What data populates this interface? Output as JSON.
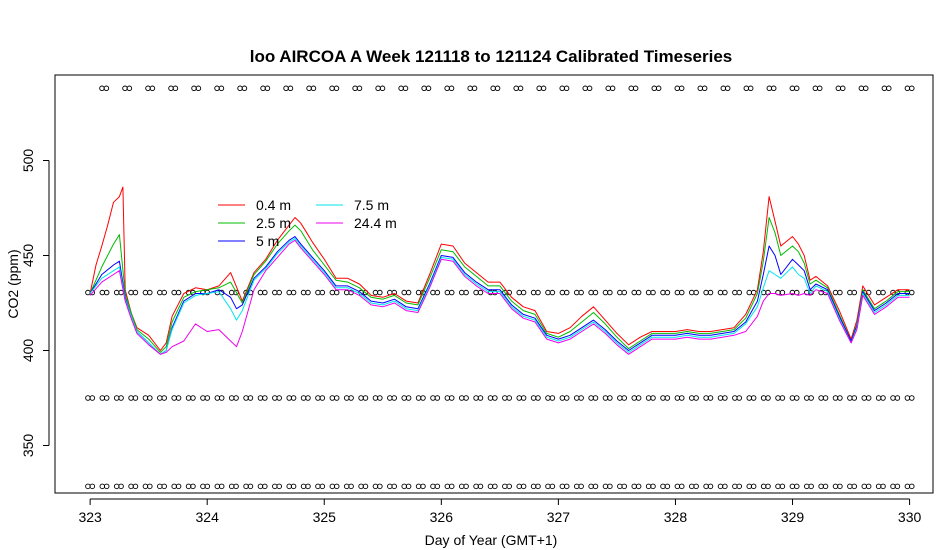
{
  "chart_data": {
    "type": "line",
    "title": "loo AIRCOA A  Week 121118 to 121124  Calibrated Timeseries",
    "xlabel": "Day of Year (GMT+1)",
    "ylabel": "CO2 (ppm)",
    "xlim": [
      322.7,
      330.2
    ],
    "ylim": [
      325,
      545
    ],
    "xticks": [
      323,
      324,
      325,
      326,
      327,
      328,
      329,
      330
    ],
    "yticks": [
      350,
      400,
      450,
      500
    ],
    "grid": false,
    "legend_position": "upper-left",
    "series": [
      {
        "name": "0.4 m",
        "color": "#ff0000",
        "x": [
          323.0,
          323.05,
          323.1,
          323.15,
          323.2,
          323.25,
          323.28,
          323.3,
          323.35,
          323.4,
          323.5,
          323.6,
          323.65,
          323.7,
          323.8,
          323.9,
          324.0,
          324.1,
          324.2,
          324.3,
          324.4,
          324.5,
          324.6,
          324.7,
          324.75,
          324.8,
          324.85,
          324.9,
          325.0,
          325.1,
          325.2,
          325.3,
          325.4,
          325.5,
          325.6,
          325.7,
          325.8,
          325.9,
          326.0,
          326.1,
          326.2,
          326.3,
          326.4,
          326.5,
          326.6,
          326.7,
          326.8,
          326.9,
          327.0,
          327.1,
          327.2,
          327.3,
          327.4,
          327.5,
          327.6,
          327.7,
          327.8,
          327.9,
          328.0,
          328.1,
          328.2,
          328.3,
          328.4,
          328.5,
          328.6,
          328.7,
          328.75,
          328.8,
          328.85,
          328.9,
          329.0,
          329.05,
          329.1,
          329.15,
          329.2,
          329.3,
          329.4,
          329.5,
          329.55,
          329.6,
          329.7,
          329.8,
          329.9,
          330.0
        ],
        "values": [
          430,
          445,
          455,
          466,
          478,
          481,
          486,
          432,
          420,
          412,
          408,
          400,
          404,
          418,
          430,
          433,
          432,
          434,
          441,
          426,
          441,
          448,
          458,
          466,
          470,
          467,
          462,
          457,
          448,
          438,
          438,
          435,
          429,
          428,
          430,
          426,
          425,
          440,
          456,
          455,
          446,
          441,
          436,
          436,
          428,
          423,
          421,
          410,
          409,
          412,
          418,
          423,
          416,
          409,
          403,
          407,
          410,
          410,
          410,
          411,
          410,
          410,
          411,
          412,
          419,
          432,
          452,
          481,
          468,
          455,
          460,
          456,
          450,
          437,
          439,
          434,
          421,
          406,
          416,
          434,
          424,
          428,
          432,
          432
        ]
      },
      {
        "name": "2.5 m",
        "color": "#00bb00",
        "x": [
          323.0,
          323.1,
          323.2,
          323.25,
          323.3,
          323.35,
          323.4,
          323.5,
          323.6,
          323.65,
          323.7,
          323.8,
          323.9,
          324.0,
          324.1,
          324.2,
          324.3,
          324.4,
          324.5,
          324.6,
          324.7,
          324.75,
          324.8,
          324.9,
          325.0,
          325.1,
          325.2,
          325.3,
          325.4,
          325.5,
          325.6,
          325.7,
          325.8,
          325.9,
          326.0,
          326.1,
          326.2,
          326.3,
          326.4,
          326.5,
          326.6,
          326.7,
          326.8,
          326.9,
          327.0,
          327.1,
          327.2,
          327.3,
          327.4,
          327.5,
          327.6,
          327.7,
          327.8,
          327.9,
          328.0,
          328.1,
          328.2,
          328.3,
          328.4,
          328.5,
          328.6,
          328.7,
          328.75,
          328.8,
          328.85,
          328.9,
          329.0,
          329.05,
          329.1,
          329.15,
          329.2,
          329.3,
          329.4,
          329.5,
          329.55,
          329.6,
          329.7,
          329.8,
          329.9,
          330.0
        ],
        "values": [
          430,
          444,
          456,
          461,
          430,
          420,
          411,
          406,
          399,
          402,
          415,
          428,
          431,
          432,
          433,
          436,
          425,
          440,
          447,
          456,
          463,
          466,
          463,
          453,
          445,
          437,
          436,
          433,
          428,
          427,
          429,
          425,
          424,
          438,
          453,
          452,
          444,
          439,
          434,
          434,
          426,
          421,
          419,
          409,
          407,
          410,
          415,
          420,
          414,
          407,
          401,
          405,
          409,
          409,
          409,
          410,
          409,
          409,
          410,
          411,
          417,
          430,
          447,
          470,
          462,
          450,
          455,
          452,
          446,
          435,
          437,
          433,
          419,
          405,
          414,
          432,
          422,
          426,
          431,
          431
        ]
      },
      {
        "name": "5 m",
        "color": "#0000ff",
        "x": [
          323.0,
          323.1,
          323.2,
          323.25,
          323.3,
          323.35,
          323.4,
          323.5,
          323.6,
          323.65,
          323.7,
          323.8,
          323.9,
          324.0,
          324.1,
          324.2,
          324.25,
          324.3,
          324.4,
          324.5,
          324.6,
          324.7,
          324.75,
          324.8,
          324.9,
          325.0,
          325.1,
          325.2,
          325.3,
          325.4,
          325.5,
          325.6,
          325.7,
          325.8,
          325.9,
          326.0,
          326.1,
          326.2,
          326.3,
          326.4,
          326.5,
          326.6,
          326.7,
          326.8,
          326.9,
          327.0,
          327.1,
          327.2,
          327.3,
          327.4,
          327.5,
          327.6,
          327.7,
          327.8,
          327.9,
          328.0,
          328.1,
          328.2,
          328.3,
          328.4,
          328.5,
          328.6,
          328.7,
          328.75,
          328.8,
          328.85,
          328.9,
          329.0,
          329.05,
          329.1,
          329.15,
          329.2,
          329.3,
          329.4,
          329.5,
          329.55,
          329.6,
          329.7,
          329.8,
          329.9,
          330.0
        ],
        "values": [
          430,
          440,
          445,
          447,
          428,
          418,
          410,
          404,
          398,
          400,
          412,
          426,
          430,
          430,
          432,
          428,
          422,
          424,
          438,
          444,
          452,
          458,
          460,
          456,
          449,
          442,
          434,
          434,
          431,
          426,
          425,
          427,
          423,
          422,
          435,
          450,
          449,
          441,
          436,
          432,
          432,
          424,
          419,
          417,
          408,
          406,
          408,
          412,
          416,
          411,
          405,
          400,
          404,
          408,
          408,
          408,
          409,
          408,
          408,
          409,
          410,
          415,
          426,
          440,
          455,
          450,
          440,
          448,
          445,
          442,
          432,
          435,
          432,
          418,
          405,
          413,
          431,
          421,
          425,
          430,
          430
        ]
      },
      {
        "name": "7.5 m",
        "color": "#00e5ee",
        "x": [
          323.0,
          323.1,
          323.2,
          323.25,
          323.3,
          323.35,
          323.4,
          323.5,
          323.6,
          323.65,
          323.7,
          323.8,
          323.9,
          324.0,
          324.1,
          324.2,
          324.25,
          324.3,
          324.4,
          324.5,
          324.6,
          324.7,
          324.75,
          324.8,
          324.9,
          325.0,
          325.1,
          325.2,
          325.3,
          325.4,
          325.5,
          325.6,
          325.7,
          325.8,
          325.9,
          326.0,
          326.1,
          326.2,
          326.3,
          326.4,
          326.5,
          326.6,
          326.7,
          326.8,
          326.9,
          327.0,
          327.1,
          327.2,
          327.3,
          327.4,
          327.5,
          327.6,
          327.7,
          327.8,
          327.9,
          328.0,
          328.1,
          328.2,
          328.3,
          328.4,
          328.5,
          328.6,
          328.7,
          328.75,
          328.8,
          328.85,
          328.9,
          329.0,
          329.05,
          329.1,
          329.15,
          329.2,
          329.3,
          329.4,
          329.5,
          329.55,
          329.6,
          329.7,
          329.8,
          329.9,
          330.0
        ],
        "values": [
          430,
          438,
          442,
          444,
          427,
          418,
          410,
          404,
          398,
          400,
          411,
          425,
          429,
          430,
          431,
          422,
          416,
          421,
          437,
          443,
          451,
          457,
          459,
          455,
          448,
          441,
          433,
          433,
          430,
          425,
          424,
          426,
          422,
          421,
          434,
          449,
          448,
          440,
          435,
          431,
          431,
          423,
          418,
          416,
          407,
          405,
          407,
          411,
          415,
          410,
          404,
          399,
          403,
          407,
          407,
          407,
          408,
          407,
          407,
          408,
          409,
          414,
          423,
          433,
          442,
          440,
          438,
          444,
          440,
          438,
          430,
          434,
          431,
          417,
          404,
          412,
          430,
          420,
          424,
          429,
          429
        ]
      },
      {
        "name": "24.4 m",
        "color": "#ee00ee",
        "x": [
          323.0,
          323.1,
          323.2,
          323.25,
          323.3,
          323.35,
          323.4,
          323.5,
          323.6,
          323.65,
          323.7,
          323.8,
          323.9,
          324.0,
          324.1,
          324.2,
          324.25,
          324.3,
          324.4,
          324.5,
          324.6,
          324.7,
          324.75,
          324.8,
          324.9,
          325.0,
          325.1,
          325.2,
          325.3,
          325.4,
          325.5,
          325.6,
          325.7,
          325.8,
          325.9,
          326.0,
          326.1,
          326.2,
          326.3,
          326.4,
          326.5,
          326.6,
          326.7,
          326.8,
          326.9,
          327.0,
          327.1,
          327.2,
          327.3,
          327.4,
          327.5,
          327.6,
          327.7,
          327.8,
          327.9,
          328.0,
          328.1,
          328.2,
          328.3,
          328.4,
          328.5,
          328.6,
          328.7,
          328.75,
          328.8,
          328.85,
          328.9,
          329.0,
          329.05,
          329.1,
          329.15,
          329.2,
          329.3,
          329.4,
          329.5,
          329.55,
          329.6,
          329.7,
          329.8,
          329.9,
          330.0
        ],
        "values": [
          429,
          436,
          440,
          442,
          426,
          417,
          409,
          403,
          398,
          399,
          402,
          405,
          414,
          410,
          411,
          405,
          402,
          410,
          432,
          442,
          449,
          456,
          458,
          454,
          447,
          440,
          432,
          432,
          429,
          424,
          423,
          425,
          421,
          420,
          433,
          448,
          447,
          439,
          434,
          430,
          430,
          422,
          417,
          415,
          406,
          404,
          406,
          410,
          414,
          409,
          403,
          398,
          402,
          406,
          406,
          406,
          407,
          406,
          406,
          407,
          408,
          410,
          418,
          426,
          430,
          430,
          429,
          430,
          429,
          430,
          429,
          432,
          430,
          416,
          404,
          411,
          429,
          419,
          423,
          428,
          428
        ]
      }
    ],
    "flag_rows": [
      {
        "y": 538,
        "x_start": 323.12,
        "x_end": 330.0,
        "count": 36
      },
      {
        "y": 430.5,
        "x_start": 323.0,
        "x_end": 330.0,
        "count": 58
      },
      {
        "y": 375,
        "x_start": 323.0,
        "x_end": 330.0,
        "count": 58
      },
      {
        "y": 328.5,
        "x_start": 323.0,
        "x_end": 330.0,
        "count": 58
      }
    ]
  }
}
